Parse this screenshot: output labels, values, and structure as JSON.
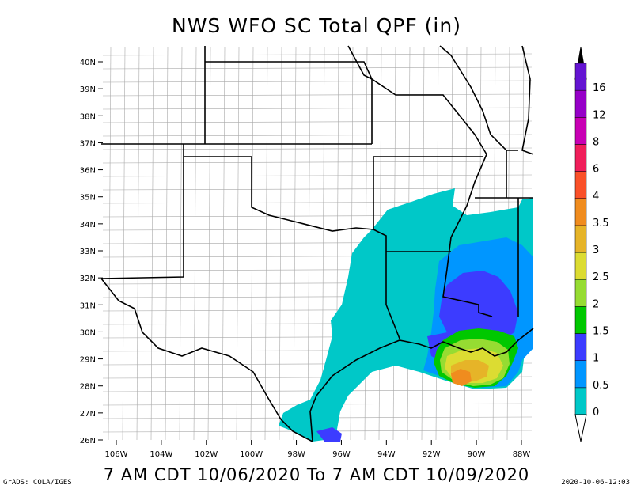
{
  "title": "NWS WFO SC Total QPF (in)",
  "valid_period": "7 AM CDT 10/06/2020 To 7 AM CDT 10/09/2020",
  "credit": "GrADS: COLA/IGES",
  "timestamp": "2020-10-06-12:03",
  "map": {
    "lat_labels": [
      "40N",
      "39N",
      "38N",
      "37N",
      "36N",
      "35N",
      "34N",
      "33N",
      "32N",
      "31N",
      "30N",
      "29N",
      "28N",
      "27N",
      "26N"
    ],
    "lon_labels": [
      "106W",
      "104W",
      "102W",
      "100W",
      "98W",
      "96W",
      "94W",
      "92W",
      "90W",
      "88W"
    ]
  },
  "legend": {
    "unit": "in",
    "levels": [
      {
        "value": "0",
        "color": "#00c8c8"
      },
      {
        "value": "0.5",
        "color": "#0096ff"
      },
      {
        "value": "1",
        "color": "#3c3cff"
      },
      {
        "value": "1.5",
        "color": "#00c800"
      },
      {
        "value": "2",
        "color": "#96dc32"
      },
      {
        "value": "2.5",
        "color": "#dcdc32"
      },
      {
        "value": "3",
        "color": "#e6b428"
      },
      {
        "value": "3.5",
        "color": "#f08c1e"
      },
      {
        "value": "4",
        "color": "#fa5028"
      },
      {
        "value": "6",
        "color": "#f01e5a"
      },
      {
        "value": "8",
        "color": "#c800b4"
      },
      {
        "value": "12",
        "color": "#9600c8"
      },
      {
        "value": "16",
        "color": "#6414d2"
      }
    ]
  }
}
